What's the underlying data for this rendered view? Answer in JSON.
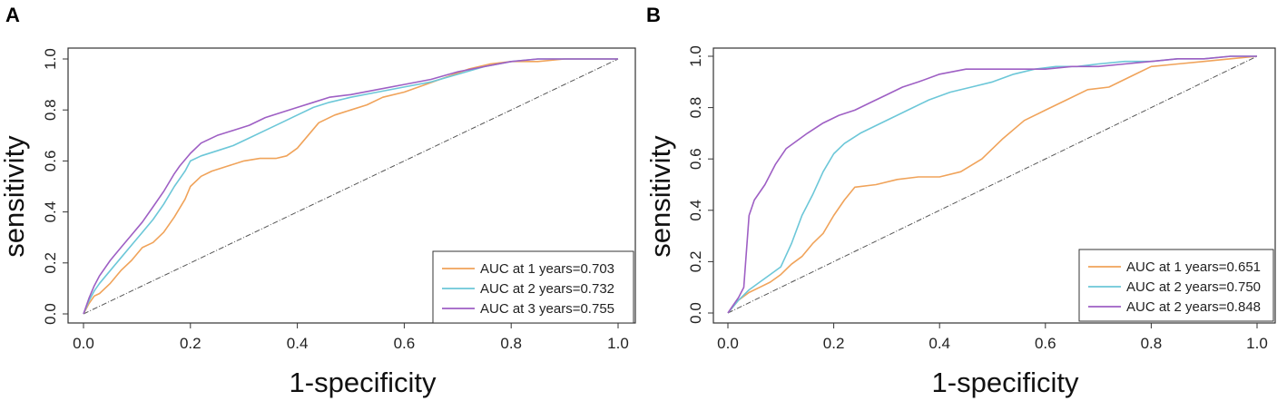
{
  "chart_data": [
    {
      "panel_label": "A",
      "type": "line",
      "title": "",
      "xlabel": "1-specificity",
      "ylabel": "sensitivity",
      "xlim": [
        0,
        1
      ],
      "ylim": [
        0,
        1
      ],
      "x_ticks": [
        "0.0",
        "0.2",
        "0.4",
        "0.6",
        "0.8",
        "1.0"
      ],
      "y_ticks": [
        "0.0",
        "0.2",
        "0.4",
        "0.6",
        "0.8",
        "1.0"
      ],
      "grid": false,
      "legend_position": "bottom-right",
      "diagonal": true,
      "series": [
        {
          "name": "AUC at 1 years=0.703",
          "color": "#F0A35A",
          "x": [
            0,
            0.01,
            0.02,
            0.03,
            0.05,
            0.07,
            0.09,
            0.11,
            0.13,
            0.15,
            0.17,
            0.19,
            0.2,
            0.22,
            0.24,
            0.27,
            0.3,
            0.33,
            0.36,
            0.38,
            0.4,
            0.42,
            0.44,
            0.47,
            0.5,
            0.53,
            0.56,
            0.6,
            0.64,
            0.68,
            0.72,
            0.76,
            0.8,
            0.85,
            0.9,
            0.95,
            1.0
          ],
          "y": [
            0,
            0.04,
            0.07,
            0.08,
            0.12,
            0.17,
            0.21,
            0.26,
            0.28,
            0.32,
            0.38,
            0.45,
            0.5,
            0.54,
            0.56,
            0.58,
            0.6,
            0.61,
            0.61,
            0.62,
            0.65,
            0.7,
            0.75,
            0.78,
            0.8,
            0.82,
            0.85,
            0.87,
            0.9,
            0.93,
            0.96,
            0.98,
            0.99,
            0.99,
            1.0,
            1.0,
            1.0
          ]
        },
        {
          "name": "AUC at 2 years=0.732",
          "color": "#6CC7D8",
          "x": [
            0,
            0.01,
            0.02,
            0.03,
            0.05,
            0.07,
            0.09,
            0.11,
            0.13,
            0.15,
            0.17,
            0.19,
            0.2,
            0.22,
            0.25,
            0.28,
            0.31,
            0.34,
            0.37,
            0.4,
            0.43,
            0.46,
            0.5,
            0.55,
            0.6,
            0.65,
            0.7,
            0.75,
            0.8,
            0.85,
            0.9,
            0.95,
            1.0
          ],
          "y": [
            0,
            0.05,
            0.09,
            0.12,
            0.17,
            0.22,
            0.27,
            0.32,
            0.37,
            0.43,
            0.5,
            0.56,
            0.6,
            0.62,
            0.64,
            0.66,
            0.69,
            0.72,
            0.75,
            0.78,
            0.81,
            0.83,
            0.85,
            0.87,
            0.89,
            0.91,
            0.94,
            0.97,
            0.99,
            1.0,
            1.0,
            1.0,
            1.0
          ]
        },
        {
          "name": "AUC at 3 years=0.755",
          "color": "#9E5FC4",
          "x": [
            0,
            0.01,
            0.02,
            0.03,
            0.05,
            0.07,
            0.09,
            0.11,
            0.13,
            0.15,
            0.17,
            0.18,
            0.2,
            0.22,
            0.25,
            0.28,
            0.31,
            0.34,
            0.37,
            0.4,
            0.43,
            0.46,
            0.5,
            0.55,
            0.6,
            0.65,
            0.7,
            0.75,
            0.8,
            0.85,
            0.9,
            0.95,
            1.0
          ],
          "y": [
            0,
            0.06,
            0.11,
            0.15,
            0.21,
            0.26,
            0.31,
            0.36,
            0.42,
            0.48,
            0.55,
            0.58,
            0.63,
            0.67,
            0.7,
            0.72,
            0.74,
            0.77,
            0.79,
            0.81,
            0.83,
            0.85,
            0.86,
            0.88,
            0.9,
            0.92,
            0.95,
            0.97,
            0.99,
            1.0,
            1.0,
            1.0,
            1.0
          ]
        }
      ]
    },
    {
      "panel_label": "B",
      "type": "line",
      "title": "",
      "xlabel": "1-specificity",
      "ylabel": "sensitivity",
      "xlim": [
        0,
        1
      ],
      "ylim": [
        0,
        1
      ],
      "x_ticks": [
        "0.0",
        "0.2",
        "0.4",
        "0.6",
        "0.8",
        "1.0"
      ],
      "y_ticks": [
        "0.0",
        "0.2",
        "0.4",
        "0.6",
        "0.8",
        "1.0"
      ],
      "grid": false,
      "legend_position": "bottom-right",
      "diagonal": true,
      "series": [
        {
          "name": "AUC at 1 years=0.651",
          "color": "#F0A35A",
          "x": [
            0,
            0.02,
            0.04,
            0.06,
            0.08,
            0.1,
            0.12,
            0.14,
            0.16,
            0.18,
            0.2,
            0.22,
            0.24,
            0.28,
            0.32,
            0.36,
            0.4,
            0.44,
            0.48,
            0.52,
            0.56,
            0.6,
            0.64,
            0.68,
            0.72,
            0.76,
            0.8,
            0.85,
            0.9,
            0.95,
            1.0
          ],
          "y": [
            0,
            0.05,
            0.08,
            0.1,
            0.12,
            0.15,
            0.19,
            0.22,
            0.27,
            0.31,
            0.38,
            0.44,
            0.49,
            0.5,
            0.52,
            0.53,
            0.53,
            0.55,
            0.6,
            0.68,
            0.75,
            0.79,
            0.83,
            0.87,
            0.88,
            0.92,
            0.96,
            0.97,
            0.98,
            0.99,
            1.0
          ]
        },
        {
          "name": "AUC at 2 years=0.750",
          "color": "#6CC7D8",
          "x": [
            0,
            0.02,
            0.04,
            0.06,
            0.08,
            0.1,
            0.12,
            0.14,
            0.16,
            0.18,
            0.2,
            0.22,
            0.25,
            0.28,
            0.31,
            0.34,
            0.38,
            0.42,
            0.46,
            0.5,
            0.54,
            0.58,
            0.62,
            0.66,
            0.7,
            0.75,
            0.8,
            0.85,
            0.9,
            0.95,
            1.0
          ],
          "y": [
            0,
            0.05,
            0.09,
            0.12,
            0.15,
            0.18,
            0.27,
            0.38,
            0.46,
            0.55,
            0.62,
            0.66,
            0.7,
            0.73,
            0.76,
            0.79,
            0.83,
            0.86,
            0.88,
            0.9,
            0.93,
            0.95,
            0.96,
            0.96,
            0.97,
            0.98,
            0.98,
            0.99,
            0.99,
            1.0,
            1.0
          ]
        },
        {
          "name": "AUC at 2 years=0.848",
          "color": "#9E5FC4",
          "x": [
            0,
            0.01,
            0.02,
            0.03,
            0.04,
            0.05,
            0.07,
            0.09,
            0.11,
            0.13,
            0.15,
            0.18,
            0.21,
            0.24,
            0.27,
            0.3,
            0.33,
            0.36,
            0.4,
            0.45,
            0.5,
            0.55,
            0.6,
            0.65,
            0.7,
            0.75,
            0.8,
            0.85,
            0.9,
            0.95,
            1.0
          ],
          "y": [
            0,
            0.03,
            0.06,
            0.1,
            0.38,
            0.44,
            0.5,
            0.58,
            0.64,
            0.67,
            0.7,
            0.74,
            0.77,
            0.79,
            0.82,
            0.85,
            0.88,
            0.9,
            0.93,
            0.95,
            0.95,
            0.95,
            0.95,
            0.96,
            0.96,
            0.97,
            0.98,
            0.99,
            0.99,
            1.0,
            1.0
          ]
        }
      ]
    }
  ]
}
